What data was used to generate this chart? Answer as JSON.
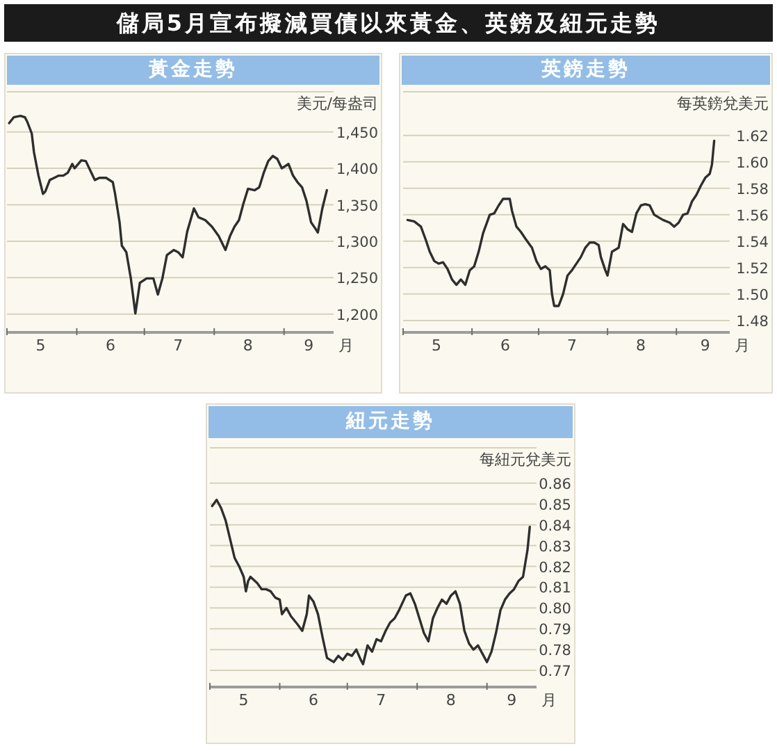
{
  "chart_data": [
    {
      "type": "line",
      "title": "黃金走勢",
      "annotations": [
        "儲局5月宣布擬減買債以來黃金、英鎊及紐元走勢"
      ],
      "xlabel": "月",
      "ylabel": "美元/每盎司",
      "color": "#2e2e2e",
      "grid": "y",
      "x": [
        "--05-02",
        "--05-04",
        "--05-07",
        "--05-09",
        "--05-10",
        "--05-12",
        "--05-13",
        "--05-15",
        "--05-17",
        "--05-18",
        "--05-20",
        "--05-22",
        "--05-24",
        "--05-26",
        "--05-28",
        "--05-30",
        "--05-31",
        "--06-03",
        "--06-05",
        "--06-07",
        "--06-09",
        "--06-11",
        "--06-14",
        "--06-17",
        "--06-18",
        "--06-20",
        "--06-21",
        "--06-23",
        "--06-25",
        "--06-27",
        "--06-29",
        "--07-02",
        "--07-05",
        "--07-07",
        "--07-09",
        "--07-11",
        "--07-14",
        "--07-16",
        "--07-18",
        "--07-20",
        "--07-23",
        "--07-25",
        "--07-28",
        "--07-31",
        "--08-03",
        "--08-06",
        "--08-08",
        "--08-10",
        "--08-12",
        "--08-14",
        "--08-16",
        "--08-19",
        "--08-21",
        "--08-23",
        "--08-25",
        "--08-27",
        "--08-29",
        "--08-31",
        "--09-03",
        "--09-05",
        "--09-07",
        "--09-09",
        "--09-11",
        "--09-13",
        "--09-15",
        "--09-16",
        "--09-18",
        "--09-20"
      ],
      "values": [
        1462,
        1470,
        1472,
        1470,
        1464,
        1448,
        1422,
        1390,
        1365,
        1368,
        1384,
        1387,
        1390,
        1390,
        1394,
        1406,
        1400,
        1411,
        1410,
        1397,
        1384,
        1387,
        1387,
        1381,
        1365,
        1326,
        1294,
        1285,
        1249,
        1201,
        1243,
        1249,
        1249,
        1227,
        1249,
        1281,
        1288,
        1285,
        1278,
        1313,
        1345,
        1333,
        1329,
        1320,
        1307,
        1288,
        1307,
        1320,
        1329,
        1352,
        1372,
        1370,
        1374,
        1394,
        1410,
        1417,
        1413,
        1400,
        1406,
        1390,
        1381,
        1374,
        1355,
        1326,
        1317,
        1312,
        1345,
        1370
      ],
      "xlim": [
        "--05-01",
        "--09-23"
      ],
      "xticks": [
        {
          "value": "--05-01",
          "label": null
        },
        {
          "value": "--05-16",
          "label": "5"
        },
        {
          "value": "--06-01",
          "label": null
        },
        {
          "value": "--06-16",
          "label": "6"
        },
        {
          "value": "--07-01",
          "label": null
        },
        {
          "value": "--07-16",
          "label": "7"
        },
        {
          "value": "--08-01",
          "label": null
        },
        {
          "value": "--08-16",
          "label": "8"
        },
        {
          "value": "--09-01",
          "label": null
        },
        {
          "value": "--09-12",
          "label": "9"
        }
      ],
      "ylim": [
        1175,
        1505
      ],
      "yticks": [
        {
          "value": 1200,
          "label": "1,200"
        },
        {
          "value": 1250,
          "label": "1,250"
        },
        {
          "value": 1300,
          "label": "1,300"
        },
        {
          "value": 1350,
          "label": "1,350"
        },
        {
          "value": 1400,
          "label": "1,400"
        },
        {
          "value": 1450,
          "label": "1,450"
        }
      ]
    },
    {
      "type": "line",
      "title": "英鎊走勢",
      "xlabel": "月",
      "ylabel": "每英鎊兌美元",
      "color": "#2e2e2e",
      "grid": "y",
      "x": [
        "--05-03",
        "--05-06",
        "--05-09",
        "--05-11",
        "--05-13",
        "--05-15",
        "--05-17",
        "--05-19",
        "--05-21",
        "--05-23",
        "--05-25",
        "--05-27",
        "--05-29",
        "--05-31",
        "--06-02",
        "--06-04",
        "--06-06",
        "--06-09",
        "--06-11",
        "--06-13",
        "--06-15",
        "--06-18",
        "--06-19",
        "--06-21",
        "--06-23",
        "--06-25",
        "--06-28",
        "--06-30",
        "--07-02",
        "--07-04",
        "--07-06",
        "--07-07",
        "--07-08",
        "--07-10",
        "--07-12",
        "--07-14",
        "--07-16",
        "--07-18",
        "--07-20",
        "--07-22",
        "--07-24",
        "--07-26",
        "--07-28",
        "--07-29",
        "--07-31",
        "--08-01",
        "--08-03",
        "--08-06",
        "--08-08",
        "--08-10",
        "--08-12",
        "--08-14",
        "--08-16",
        "--08-18",
        "--08-20",
        "--08-22",
        "--08-24",
        "--08-26",
        "--08-29",
        "--08-31",
        "--09-02",
        "--09-04",
        "--09-06",
        "--09-08",
        "--09-10",
        "--09-12",
        "--09-14",
        "--09-16",
        "--09-17",
        "--09-18"
      ],
      "values": [
        1.556,
        1.555,
        1.551,
        1.542,
        1.532,
        1.525,
        1.523,
        1.524,
        1.519,
        1.511,
        1.507,
        1.511,
        1.507,
        1.518,
        1.521,
        1.532,
        1.546,
        1.56,
        1.561,
        1.567,
        1.572,
        1.572,
        1.563,
        1.551,
        1.547,
        1.542,
        1.535,
        1.525,
        1.519,
        1.521,
        1.518,
        1.5,
        1.491,
        1.491,
        1.5,
        1.514,
        1.518,
        1.523,
        1.528,
        1.535,
        1.539,
        1.539,
        1.537,
        1.528,
        1.518,
        1.514,
        1.532,
        1.535,
        1.553,
        1.549,
        1.547,
        1.561,
        1.567,
        1.568,
        1.567,
        1.56,
        1.558,
        1.556,
        1.554,
        1.551,
        1.554,
        1.56,
        1.561,
        1.57,
        1.575,
        1.582,
        1.588,
        1.591,
        1.598,
        1.616
      ],
      "xlim": [
        "--05-01",
        "--09-25"
      ],
      "xticks": [
        {
          "value": "--05-01",
          "label": null
        },
        {
          "value": "--05-16",
          "label": "5"
        },
        {
          "value": "--06-01",
          "label": null
        },
        {
          "value": "--06-16",
          "label": "6"
        },
        {
          "value": "--07-01",
          "label": null
        },
        {
          "value": "--07-16",
          "label": "7"
        },
        {
          "value": "--08-01",
          "label": null
        },
        {
          "value": "--08-16",
          "label": "8"
        },
        {
          "value": "--09-01",
          "label": null
        },
        {
          "value": "--09-14",
          "label": "9"
        }
      ],
      "ylim": [
        1.471,
        1.653
      ],
      "yticks": [
        {
          "value": 1.48,
          "label": "1.48"
        },
        {
          "value": 1.5,
          "label": "1.50"
        },
        {
          "value": 1.52,
          "label": "1.52"
        },
        {
          "value": 1.54,
          "label": "1.54"
        },
        {
          "value": 1.56,
          "label": "1.56"
        },
        {
          "value": 1.58,
          "label": "1.58"
        },
        {
          "value": 1.6,
          "label": "1.60"
        },
        {
          "value": 1.62,
          "label": "1.62"
        }
      ]
    },
    {
      "type": "line",
      "title": "紐元走勢",
      "xlabel": "月",
      "ylabel": "每紐元兌美元",
      "color": "#2e2e2e",
      "grid": "y",
      "x": [
        "--05-02",
        "--05-04",
        "--05-06",
        "--05-08",
        "--05-10",
        "--05-12",
        "--05-14",
        "--05-16",
        "--05-17",
        "--05-18",
        "--05-19",
        "--05-22",
        "--05-24",
        "--05-26",
        "--05-28",
        "--05-30",
        "--06-01",
        "--06-02",
        "--06-04",
        "--06-06",
        "--06-09",
        "--06-11",
        "--06-13",
        "--06-14",
        "--06-16",
        "--06-18",
        "--06-20",
        "--06-22",
        "--06-25",
        "--06-27",
        "--06-29",
        "--07-01",
        "--07-03",
        "--07-05",
        "--07-07",
        "--07-08",
        "--07-10",
        "--07-12",
        "--07-14",
        "--07-16",
        "--07-18",
        "--07-20",
        "--07-22",
        "--07-24",
        "--07-27",
        "--07-29",
        "--07-31",
        "--08-02",
        "--08-04",
        "--08-06",
        "--08-08",
        "--08-10",
        "--08-12",
        "--08-14",
        "--08-16",
        "--08-18",
        "--08-20",
        "--08-22",
        "--08-24",
        "--08-26",
        "--08-28",
        "--08-30",
        "--09-01",
        "--09-03",
        "--09-05",
        "--09-07",
        "--09-09",
        "--09-11",
        "--09-13",
        "--09-15",
        "--09-17",
        "--09-19",
        "--09-20"
      ],
      "values": [
        0.849,
        0.852,
        0.848,
        0.842,
        0.833,
        0.824,
        0.82,
        0.815,
        0.808,
        0.813,
        0.815,
        0.812,
        0.809,
        0.809,
        0.808,
        0.805,
        0.804,
        0.797,
        0.8,
        0.796,
        0.792,
        0.789,
        0.797,
        0.806,
        0.803,
        0.797,
        0.786,
        0.776,
        0.774,
        0.777,
        0.775,
        0.778,
        0.777,
        0.78,
        0.775,
        0.773,
        0.782,
        0.779,
        0.785,
        0.784,
        0.789,
        0.793,
        0.795,
        0.799,
        0.806,
        0.807,
        0.802,
        0.795,
        0.788,
        0.784,
        0.795,
        0.8,
        0.804,
        0.802,
        0.806,
        0.808,
        0.802,
        0.789,
        0.783,
        0.78,
        0.782,
        0.778,
        0.774,
        0.779,
        0.788,
        0.799,
        0.804,
        0.807,
        0.809,
        0.813,
        0.815,
        0.828,
        0.839
      ],
      "xlim": [
        "--05-01",
        "--09-23"
      ],
      "xticks": [
        {
          "value": "--05-01",
          "label": null
        },
        {
          "value": "--05-16",
          "label": "5"
        },
        {
          "value": "--06-01",
          "label": null
        },
        {
          "value": "--06-16",
          "label": "6"
        },
        {
          "value": "--07-01",
          "label": null
        },
        {
          "value": "--07-16",
          "label": "7"
        },
        {
          "value": "--08-01",
          "label": null
        },
        {
          "value": "--08-16",
          "label": "8"
        },
        {
          "value": "--09-01",
          "label": null
        },
        {
          "value": "--09-12",
          "label": "9"
        }
      ],
      "ylim": [
        0.762,
        0.877
      ],
      "yticks": [
        0.77,
        0.78,
        0.79,
        {
          "value": 0.8,
          "label": "0.80"
        },
        0.81,
        0.82,
        0.83,
        0.84,
        0.85,
        0.86
      ]
    }
  ]
}
